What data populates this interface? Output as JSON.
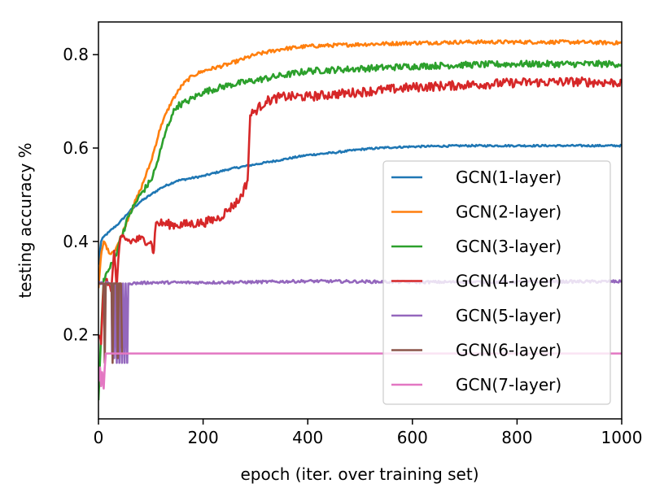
{
  "chart_data": {
    "type": "line",
    "title": "",
    "xlabel": "epoch (iter. over training set)",
    "ylabel": "testing accuracy %",
    "xlim": [
      0,
      1000
    ],
    "ylim": [
      0.02,
      0.87
    ],
    "xticks": [
      0,
      200,
      400,
      600,
      800,
      1000
    ],
    "yticks": [
      0.2,
      0.4,
      0.6,
      0.8
    ],
    "xtick_labels": [
      "0",
      "200",
      "400",
      "600",
      "800",
      "1000"
    ],
    "ytick_labels": [
      "0.2",
      "0.4",
      "0.6",
      "0.8"
    ],
    "grid": false,
    "legend_position": "lower-right",
    "series": [
      {
        "name": "GCN(1-layer)",
        "color": "#1f77b4",
        "noise": 0.002,
        "points": [
          [
            0,
            0.35
          ],
          [
            5,
            0.4
          ],
          [
            10,
            0.41
          ],
          [
            20,
            0.42
          ],
          [
            40,
            0.44
          ],
          [
            60,
            0.465
          ],
          [
            80,
            0.485
          ],
          [
            100,
            0.5
          ],
          [
            120,
            0.515
          ],
          [
            150,
            0.53
          ],
          [
            200,
            0.54
          ],
          [
            250,
            0.555
          ],
          [
            300,
            0.565
          ],
          [
            350,
            0.575
          ],
          [
            400,
            0.585
          ],
          [
            450,
            0.59
          ],
          [
            500,
            0.597
          ],
          [
            550,
            0.601
          ],
          [
            600,
            0.603
          ],
          [
            700,
            0.605
          ],
          [
            800,
            0.605
          ],
          [
            900,
            0.605
          ],
          [
            1000,
            0.605
          ]
        ]
      },
      {
        "name": "GCN(2-layer)",
        "color": "#ff7f0e",
        "noise": 0.004,
        "points": [
          [
            0,
            0.3
          ],
          [
            5,
            0.37
          ],
          [
            10,
            0.4
          ],
          [
            15,
            0.39
          ],
          [
            20,
            0.375
          ],
          [
            30,
            0.38
          ],
          [
            40,
            0.4
          ],
          [
            50,
            0.43
          ],
          [
            60,
            0.46
          ],
          [
            80,
            0.51
          ],
          [
            100,
            0.57
          ],
          [
            120,
            0.65
          ],
          [
            140,
            0.7
          ],
          [
            160,
            0.735
          ],
          [
            180,
            0.755
          ],
          [
            200,
            0.765
          ],
          [
            250,
            0.78
          ],
          [
            300,
            0.8
          ],
          [
            350,
            0.812
          ],
          [
            400,
            0.818
          ],
          [
            500,
            0.822
          ],
          [
            600,
            0.825
          ],
          [
            700,
            0.827
          ],
          [
            800,
            0.827
          ],
          [
            900,
            0.827
          ],
          [
            1000,
            0.825
          ]
        ]
      },
      {
        "name": "GCN(3-layer)",
        "color": "#2ca02c",
        "noise": 0.007,
        "points": [
          [
            0,
            0.06
          ],
          [
            5,
            0.2
          ],
          [
            10,
            0.32
          ],
          [
            20,
            0.34
          ],
          [
            30,
            0.36
          ],
          [
            40,
            0.4
          ],
          [
            60,
            0.46
          ],
          [
            80,
            0.5
          ],
          [
            100,
            0.53
          ],
          [
            110,
            0.56
          ],
          [
            120,
            0.6
          ],
          [
            130,
            0.64
          ],
          [
            140,
            0.67
          ],
          [
            150,
            0.69
          ],
          [
            170,
            0.7
          ],
          [
            200,
            0.72
          ],
          [
            250,
            0.735
          ],
          [
            300,
            0.745
          ],
          [
            350,
            0.755
          ],
          [
            400,
            0.765
          ],
          [
            500,
            0.77
          ],
          [
            600,
            0.775
          ],
          [
            700,
            0.778
          ],
          [
            800,
            0.78
          ],
          [
            900,
            0.78
          ],
          [
            1000,
            0.78
          ]
        ]
      },
      {
        "name": "GCN(4-layer)",
        "color": "#d62728",
        "noise": 0.01,
        "points": [
          [
            0,
            0.2
          ],
          [
            5,
            0.18
          ],
          [
            10,
            0.31
          ],
          [
            20,
            0.31
          ],
          [
            25,
            0.3
          ],
          [
            30,
            0.38
          ],
          [
            35,
            0.3
          ],
          [
            40,
            0.39
          ],
          [
            45,
            0.41
          ],
          [
            60,
            0.4
          ],
          [
            80,
            0.405
          ],
          [
            100,
            0.4
          ],
          [
            105,
            0.375
          ],
          [
            110,
            0.44
          ],
          [
            150,
            0.435
          ],
          [
            200,
            0.44
          ],
          [
            230,
            0.45
          ],
          [
            250,
            0.47
          ],
          [
            270,
            0.49
          ],
          [
            285,
            0.53
          ],
          [
            290,
            0.67
          ],
          [
            300,
            0.68
          ],
          [
            320,
            0.7
          ],
          [
            350,
            0.71
          ],
          [
            400,
            0.71
          ],
          [
            450,
            0.715
          ],
          [
            500,
            0.72
          ],
          [
            550,
            0.725
          ],
          [
            600,
            0.73
          ],
          [
            700,
            0.735
          ],
          [
            800,
            0.74
          ],
          [
            900,
            0.742
          ],
          [
            1000,
            0.74
          ]
        ]
      },
      {
        "name": "GCN(5-layer)",
        "color": "#9467bd",
        "noise": 0.003,
        "points": [
          [
            0,
            0.31
          ],
          [
            25,
            0.31
          ],
          [
            26,
            0.16
          ],
          [
            28,
            0.31
          ],
          [
            30,
            0.15
          ],
          [
            32,
            0.31
          ],
          [
            35,
            0.14
          ],
          [
            37,
            0.31
          ],
          [
            40,
            0.14
          ],
          [
            42,
            0.31
          ],
          [
            45,
            0.14
          ],
          [
            47,
            0.31
          ],
          [
            50,
            0.14
          ],
          [
            52,
            0.31
          ],
          [
            55,
            0.14
          ],
          [
            57,
            0.31
          ],
          [
            60,
            0.31
          ],
          [
            100,
            0.312
          ],
          [
            200,
            0.312
          ],
          [
            300,
            0.313
          ],
          [
            400,
            0.315
          ],
          [
            500,
            0.314
          ],
          [
            600,
            0.313
          ],
          [
            700,
            0.313
          ],
          [
            800,
            0.313
          ],
          [
            900,
            0.314
          ],
          [
            1000,
            0.314
          ]
        ]
      },
      {
        "name": "GCN(6-layer)",
        "color": "#8c564b",
        "noise": 0,
        "points": [
          [
            0,
            0.31
          ],
          [
            10,
            0.31
          ],
          [
            12,
            0.14
          ],
          [
            14,
            0.31
          ],
          [
            25,
            0.31
          ],
          [
            27,
            0.14
          ],
          [
            29,
            0.31
          ],
          [
            35,
            0.31
          ],
          [
            37,
            0.15
          ],
          [
            39,
            0.31
          ],
          [
            43,
            0.31
          ],
          [
            45,
            0.16
          ],
          [
            47,
            0.16
          ]
        ]
      },
      {
        "name": "GCN(7-layer)",
        "color": "#e377c2",
        "noise": 0,
        "points": [
          [
            0,
            0.1
          ],
          [
            3,
            0.13
          ],
          [
            5,
            0.09
          ],
          [
            7,
            0.12
          ],
          [
            10,
            0.085
          ],
          [
            12,
            0.13
          ],
          [
            14,
            0.16
          ],
          [
            20,
            0.16
          ],
          [
            100,
            0.16
          ],
          [
            300,
            0.16
          ],
          [
            500,
            0.16
          ],
          [
            700,
            0.16
          ],
          [
            900,
            0.16
          ],
          [
            1000,
            0.16
          ]
        ]
      }
    ]
  }
}
